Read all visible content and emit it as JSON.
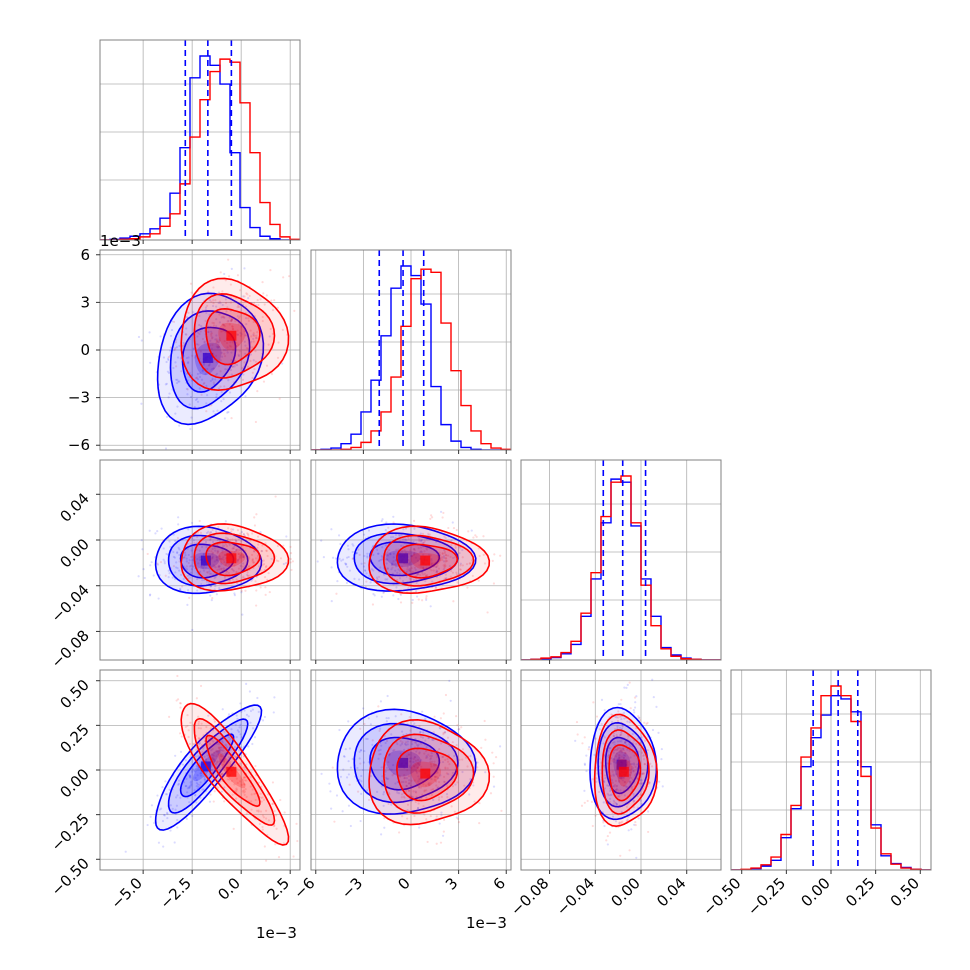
{
  "chart_data": {
    "type": "corner",
    "parameter_count": 4,
    "colors": {
      "series_a": "#0000ff",
      "series_b": "#ff0000",
      "grid": "#b0b0b0",
      "frame": "#808080"
    },
    "credible_lines": [
      [
        -0.00285,
        -0.0017,
        -0.0005
      ],
      [
        -0.002,
        -0.0005,
        0.0008
      ],
      [
        -0.033,
        -0.016,
        0.004
      ],
      [
        -0.1,
        0.04,
        0.15
      ]
    ],
    "axes": [
      {
        "range": [
          -0.0072,
          0.003
        ],
        "ticks": [
          -0.005,
          -0.0025,
          0.0,
          0.0025
        ],
        "tick_labels": [
          "−5.0",
          "−2.5",
          "0.0",
          "2.5"
        ],
        "offset_text": "1e−3"
      },
      {
        "range": [
          -0.0063,
          0.0063
        ],
        "ticks": [
          -0.006,
          -0.003,
          0,
          0.003,
          0.006
        ],
        "tick_labels": [
          "−6",
          "−3",
          "0",
          "3",
          "6"
        ],
        "offset_text": "1e−3"
      },
      {
        "range": [
          -0.105,
          0.07
        ],
        "ticks": [
          -0.08,
          -0.04,
          0.0,
          0.04
        ],
        "tick_labels": [
          "−0.08",
          "−0.04",
          "0.00",
          "0.04"
        ],
        "offset_text": ""
      },
      {
        "range": [
          -0.56,
          0.56
        ],
        "ticks": [
          -0.5,
          -0.25,
          0.0,
          0.25,
          0.5
        ],
        "tick_labels": [
          "−0.50",
          "−0.25",
          "0.00",
          "0.25",
          "0.50"
        ],
        "offset_text": ""
      }
    ],
    "series": [
      {
        "color": "#0000ff",
        "histograms": [
          {
            "edges": [
              -0.0072,
              -0.00669,
              -0.00618,
              -0.00567,
              -0.00516,
              -0.00465,
              -0.00414,
              -0.00363,
              -0.00312,
              -0.00261,
              -0.0021,
              -0.00159,
              -0.00108,
              -0.00057,
              -6e-05,
              0.00045,
              0.00096,
              0.00147,
              0.00198,
              0.00249,
              0.003
            ],
            "counts": [
              0,
              1,
              3,
              6,
              10,
              18,
              35,
              75,
              148,
              260,
              295,
              280,
              250,
              140,
              52,
              20,
              6,
              2,
              0,
              0
            ]
          },
          {
            "edges": [
              -0.0063,
              -0.00567,
              -0.00504,
              -0.00441,
              -0.00378,
              -0.00315,
              -0.00252,
              -0.00189,
              -0.00126,
              -0.00063,
              0.0,
              0.00063,
              0.00126,
              0.00189,
              0.00252,
              0.00315,
              0.00378,
              0.00441,
              0.00504,
              0.00567,
              0.0063
            ],
            "counts": [
              0,
              1,
              3,
              10,
              25,
              60,
              110,
              180,
              255,
              290,
              275,
              230,
              100,
              40,
              14,
              4,
              1,
              0,
              0,
              0
            ]
          },
          {
            "edges": [
              -0.105,
              -0.09625,
              -0.0875,
              -0.07875,
              -0.07,
              -0.06125,
              -0.0525,
              -0.04375,
              -0.035,
              -0.02625,
              -0.0175,
              -0.00875,
              0.0,
              0.00875,
              0.0175,
              0.02625,
              0.035,
              0.04375,
              0.0525,
              0.06125,
              0.07
            ],
            "counts": [
              0,
              1,
              2,
              4,
              10,
              25,
              70,
              130,
              220,
              290,
              285,
              215,
              130,
              70,
              20,
              8,
              3,
              1,
              0,
              0
            ]
          },
          {
            "edges": [
              -0.56,
              -0.504,
              -0.448,
              -0.392,
              -0.336,
              -0.28,
              -0.224,
              -0.168,
              -0.112,
              -0.056,
              0.0,
              0.056,
              0.112,
              0.168,
              0.224,
              0.28,
              0.336,
              0.392,
              0.448,
              0.504,
              0.56
            ],
            "counts": [
              0,
              0,
              2,
              6,
              15,
              50,
              95,
              160,
              205,
              240,
              270,
              265,
              245,
              160,
              70,
              22,
              10,
              4,
              1,
              0
            ]
          }
        ],
        "pair_centers": {
          "1-0": [
            -0.0017,
            -0.0005
          ],
          "2-0": [
            -0.0018,
            -0.018
          ],
          "2-1": [
            -0.0005,
            -0.016
          ],
          "3-0": [
            -0.0018,
            0.02
          ],
          "3-1": [
            -0.0005,
            0.04
          ],
          "3-2": [
            -0.017,
            0.03
          ]
        },
        "pair_widths": {
          "1-0": [
            0.0013,
            0.0021
          ],
          "2-0": [
            0.0013,
            0.015
          ],
          "2-1": [
            0.0021,
            0.015
          ],
          "3-0": [
            0.0013,
            0.17
          ],
          "3-1": [
            0.0021,
            0.15
          ],
          "3-2": [
            0.014,
            0.16
          ]
        },
        "pair_correlation": {
          "1-0": 0.2,
          "2-0": 0.0,
          "2-1": 0.0,
          "3-0": 0.85,
          "3-1": 0.0,
          "3-2": 0.0
        }
      },
      {
        "color": "#ff0000",
        "histograms": [
          {
            "edges": [
              -0.0072,
              -0.00669,
              -0.00618,
              -0.00567,
              -0.00516,
              -0.00465,
              -0.00414,
              -0.00363,
              -0.00312,
              -0.00261,
              -0.0021,
              -0.00159,
              -0.00108,
              -0.00057,
              -6e-05,
              0.00045,
              0.00096,
              0.00147,
              0.00198,
              0.00249,
              0.003
            ],
            "counts": [
              0,
              0,
              1,
              2,
              5,
              10,
              22,
              42,
              90,
              165,
              225,
              270,
              290,
              285,
              220,
              140,
              60,
              25,
              5,
              1
            ]
          },
          {
            "edges": [
              -0.0063,
              -0.00567,
              -0.00504,
              -0.00441,
              -0.00378,
              -0.00315,
              -0.00252,
              -0.00189,
              -0.00126,
              -0.00063,
              0.0,
              0.00063,
              0.00126,
              0.00189,
              0.00252,
              0.00315,
              0.00378,
              0.00441,
              0.00504,
              0.00567,
              0.0063
            ],
            "counts": [
              0,
              0,
              0,
              1,
              4,
              12,
              30,
              60,
              115,
              195,
              270,
              285,
              280,
              200,
              125,
              70,
              30,
              10,
              3,
              1
            ]
          },
          {
            "edges": [
              -0.105,
              -0.09625,
              -0.0875,
              -0.07875,
              -0.07,
              -0.06125,
              -0.0525,
              -0.04375,
              -0.035,
              -0.02625,
              -0.0175,
              -0.00875,
              0.0,
              0.00875,
              0.0175,
              0.02625,
              0.035,
              0.04375,
              0.0525,
              0.06125,
              0.07
            ],
            "counts": [
              0,
              1,
              3,
              5,
              12,
              30,
              75,
              140,
              230,
              285,
              295,
              220,
              120,
              55,
              18,
              6,
              2,
              1,
              0,
              0
            ]
          },
          {
            "edges": [
              -0.56,
              -0.504,
              -0.448,
              -0.392,
              -0.336,
              -0.28,
              -0.224,
              -0.168,
              -0.112,
              -0.056,
              0.0,
              0.056,
              0.112,
              0.168,
              0.224,
              0.28,
              0.336,
              0.392,
              0.448,
              0.504,
              0.56
            ],
            "counts": [
              0,
              1,
              3,
              8,
              20,
              55,
              100,
              175,
              220,
              270,
              285,
              270,
              230,
              145,
              65,
              25,
              9,
              3,
              1,
              0
            ]
          }
        ],
        "pair_centers": {
          "1-0": [
            -0.0005,
            0.0009
          ],
          "2-0": [
            -0.0005,
            -0.016
          ],
          "2-1": [
            0.0009,
            -0.018
          ],
          "3-0": [
            -0.0005,
            -0.01
          ],
          "3-1": [
            0.0009,
            -0.02
          ],
          "3-2": [
            -0.015,
            -0.01
          ]
        },
        "pair_widths": {
          "1-0": [
            0.0013,
            0.0018
          ],
          "2-0": [
            0.0013,
            0.015
          ],
          "2-1": [
            0.0018,
            0.015
          ],
          "3-0": [
            0.0013,
            0.19
          ],
          "3-1": [
            0.0018,
            0.15
          ],
          "3-2": [
            0.013,
            0.16
          ]
        },
        "pair_correlation": {
          "1-0": 0.0,
          "2-0": 0.0,
          "2-1": 0.0,
          "3-0": -0.85,
          "3-1": 0.0,
          "3-2": 0.0
        }
      }
    ]
  }
}
